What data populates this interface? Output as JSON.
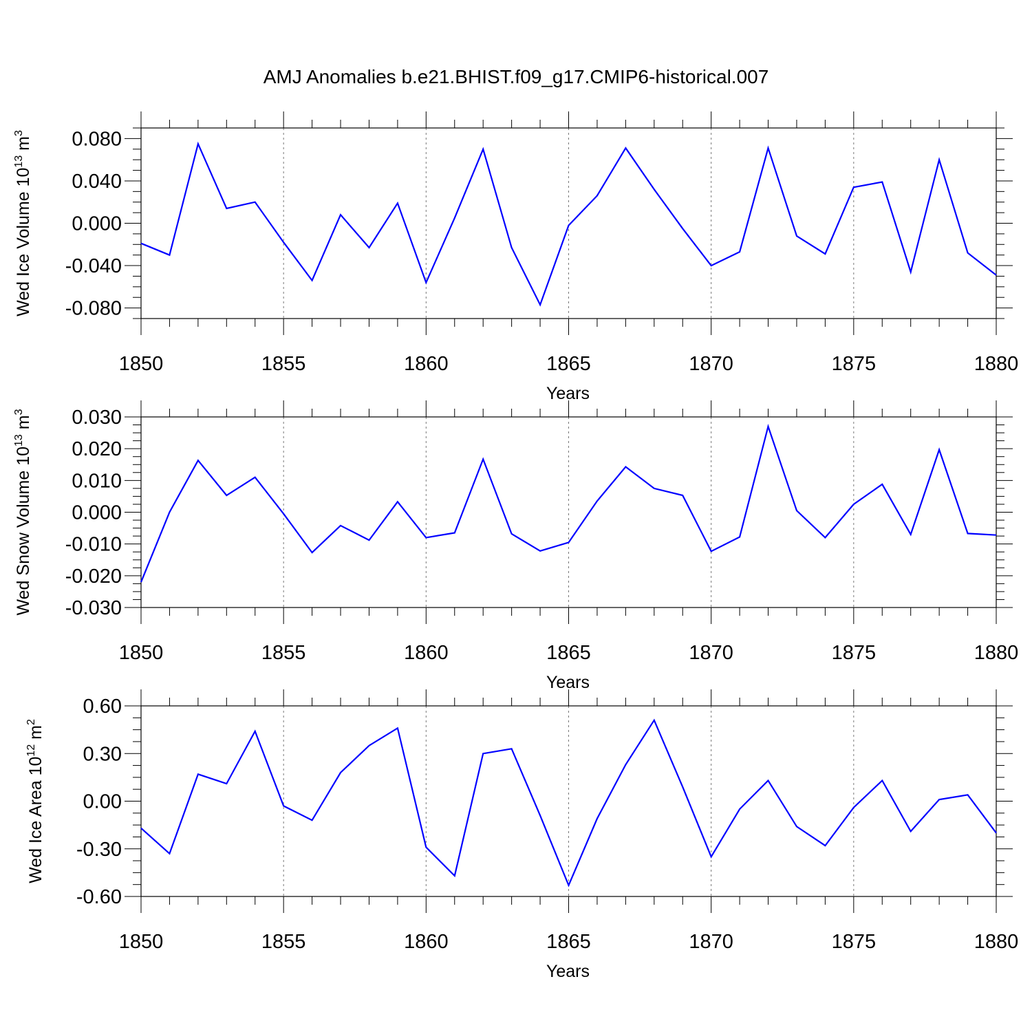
{
  "title": "AMJ Anomalies b.e21.BHIST.f09_g17.CMIP6-historical.007",
  "line_color": "#0000ff",
  "chart_data": [
    {
      "type": "line",
      "ylabel": "Wed Ice Volume 10",
      "ylabel_exp": "13",
      "ylabel_unit": "m",
      "ylabel_unit_exp": "3",
      "xlabel": "Years",
      "xlim": [
        1850,
        1880
      ],
      "ylim": [
        -0.09,
        0.09
      ],
      "yticks": [
        -0.08,
        -0.04,
        0.0,
        0.04,
        0.08
      ],
      "ytick_labels": [
        "-0.080",
        "-0.040",
        "0.000",
        "0.040",
        "0.080"
      ],
      "xticks": [
        1850,
        1855,
        1860,
        1865,
        1870,
        1875,
        1880
      ],
      "xtick_labels": [
        "1850",
        "1855",
        "1860",
        "1865",
        "1870",
        "1875",
        "1880"
      ],
      "x": [
        1850,
        1851,
        1852,
        1853,
        1854,
        1855,
        1856,
        1857,
        1858,
        1859,
        1860,
        1861,
        1862,
        1863,
        1864,
        1865,
        1866,
        1867,
        1868,
        1869,
        1870,
        1871,
        1872,
        1873,
        1874,
        1875,
        1876,
        1877,
        1878,
        1879,
        1880
      ],
      "values": [
        -0.019,
        -0.03,
        0.075,
        0.014,
        0.02,
        -0.018,
        -0.054,
        0.008,
        -0.023,
        0.019,
        -0.056,
        0.005,
        0.07,
        -0.023,
        -0.077,
        -0.002,
        0.026,
        0.071,
        0.032,
        -0.005,
        -0.04,
        -0.027,
        0.071,
        -0.012,
        -0.029,
        0.034,
        0.039,
        -0.046,
        0.06,
        -0.028,
        -0.049
      ]
    },
    {
      "type": "line",
      "ylabel": "Wed Snow Volume 10",
      "ylabel_exp": "13",
      "ylabel_unit": "m",
      "ylabel_unit_exp": "3",
      "xlabel": "Years",
      "xlim": [
        1850,
        1880
      ],
      "ylim": [
        -0.03,
        0.03
      ],
      "yticks": [
        -0.03,
        -0.02,
        -0.01,
        0.0,
        0.01,
        0.02,
        0.03
      ],
      "ytick_labels": [
        "-0.030",
        "-0.020",
        "-0.010",
        "0.000",
        "0.010",
        "0.020",
        "0.030"
      ],
      "xticks": [
        1850,
        1855,
        1860,
        1865,
        1870,
        1875,
        1880
      ],
      "xtick_labels": [
        "1850",
        "1855",
        "1860",
        "1865",
        "1870",
        "1875",
        "1880"
      ],
      "x": [
        1850,
        1851,
        1852,
        1853,
        1854,
        1855,
        1856,
        1857,
        1858,
        1859,
        1860,
        1861,
        1862,
        1863,
        1864,
        1865,
        1866,
        1867,
        1868,
        1869,
        1870,
        1871,
        1872,
        1873,
        1874,
        1875,
        1876,
        1877,
        1878,
        1879,
        1880
      ],
      "values": [
        -0.022,
        0.0,
        0.0163,
        0.0053,
        0.011,
        -0.0005,
        -0.0127,
        -0.0042,
        -0.0088,
        0.0033,
        -0.008,
        -0.0065,
        0.0167,
        -0.0068,
        -0.0122,
        -0.0095,
        0.0035,
        0.0143,
        0.0075,
        0.0053,
        -0.0123,
        -0.0078,
        0.027,
        0.0005,
        -0.008,
        0.0025,
        0.0088,
        -0.007,
        0.0197,
        -0.0067,
        -0.0072
      ]
    },
    {
      "type": "line",
      "ylabel": "Wed Ice Area 10",
      "ylabel_exp": "12",
      "ylabel_unit": "m",
      "ylabel_unit_exp": "2",
      "xlabel": "Years",
      "xlim": [
        1850,
        1880
      ],
      "ylim": [
        -0.6,
        0.6
      ],
      "yticks": [
        -0.6,
        -0.3,
        0.0,
        0.3,
        0.6
      ],
      "ytick_labels": [
        "-0.60",
        "-0.30",
        "0.00",
        "0.30",
        "0.60"
      ],
      "xticks": [
        1850,
        1855,
        1860,
        1865,
        1870,
        1875,
        1880
      ],
      "xtick_labels": [
        "1850",
        "1855",
        "1860",
        "1865",
        "1870",
        "1875",
        "1880"
      ],
      "x": [
        1850,
        1851,
        1852,
        1853,
        1854,
        1855,
        1856,
        1857,
        1858,
        1859,
        1860,
        1861,
        1862,
        1863,
        1864,
        1865,
        1866,
        1867,
        1868,
        1869,
        1870,
        1871,
        1872,
        1873,
        1874,
        1875,
        1876,
        1877,
        1878,
        1879,
        1880
      ],
      "values": [
        -0.17,
        -0.33,
        0.17,
        0.11,
        0.44,
        -0.03,
        -0.12,
        0.18,
        0.35,
        0.46,
        -0.29,
        -0.47,
        0.3,
        0.33,
        -0.09,
        -0.53,
        -0.11,
        0.23,
        0.51,
        0.09,
        -0.35,
        -0.05,
        0.13,
        -0.16,
        -0.28,
        -0.04,
        0.13,
        -0.19,
        0.01,
        0.04,
        -0.2
      ]
    }
  ]
}
